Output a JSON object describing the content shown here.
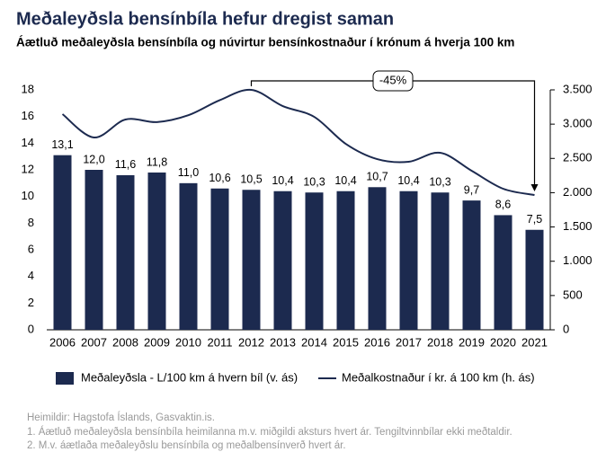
{
  "chart_data": {
    "type": "bar",
    "title": "Meðaleyðsla bensínbíla hefur dregist saman",
    "subtitle": "Áætluð meðaleyðsla bensínbíla og núvirtur bensínkostnaður í krónum á hverja 100 km",
    "categories": [
      "2006",
      "2007",
      "2008",
      "2009",
      "2010",
      "2011",
      "2012",
      "2013",
      "2014",
      "2015",
      "2016",
      "2017",
      "2018",
      "2019",
      "2020",
      "2021"
    ],
    "series": [
      {
        "name": "Meðaleyðsla - L/100 km á hvern bíl (v. ás)",
        "type": "bar",
        "color": "#1c2a4f",
        "values": [
          13.1,
          12.0,
          11.6,
          11.8,
          11.0,
          10.6,
          10.5,
          10.4,
          10.3,
          10.4,
          10.7,
          10.4,
          10.3,
          9.7,
          8.6,
          7.5
        ],
        "value_labels": [
          "13,1",
          "12,0",
          "11,6",
          "11,8",
          "11,0",
          "10,6",
          "10,5",
          "10,4",
          "10,3",
          "10,4",
          "10,7",
          "10,4",
          "10,3",
          "9,7",
          "8,6",
          "7,5"
        ]
      },
      {
        "name": "Meðalkostnaður í kr. á 100 km (h. ás)",
        "type": "line",
        "axis": "y2",
        "color": "#1c2a4f",
        "values": [
          3146,
          2805,
          3067,
          3030,
          3130,
          3350,
          3500,
          3263,
          3106,
          2713,
          2490,
          2451,
          2582,
          2320,
          2058,
          1966
        ]
      }
    ],
    "ylim": [
      0,
      18
    ],
    "yticks": [
      0,
      2,
      4,
      6,
      8,
      10,
      12,
      14,
      16,
      18
    ],
    "y2lim": [
      0,
      3500
    ],
    "y2ticks": [
      0,
      500,
      {
        "value": 1000,
        "label": "1.000"
      },
      {
        "value": 1500,
        "label": "1.500"
      },
      {
        "value": 2000,
        "label": "2.000"
      },
      {
        "value": 2500,
        "label": "2.500"
      },
      {
        "value": 3000,
        "label": "3.000"
      },
      {
        "value": 3500,
        "label": "3.500"
      }
    ],
    "annotation": "-45%",
    "notes": [
      "Heimildir: Hagstofa Íslands, Gasvaktin.is.",
      "1. Áætluð meðaleyðsla bensínbíla heimilanna m.v. miðgildi aksturs hvert ár. Tengiltvinnbílar ekki meðtaldir.",
      "2. M.v. áætlaða meðaleyðslu bensínbíla og meðalbensínverð hvert ár."
    ],
    "legend": "bottom"
  }
}
